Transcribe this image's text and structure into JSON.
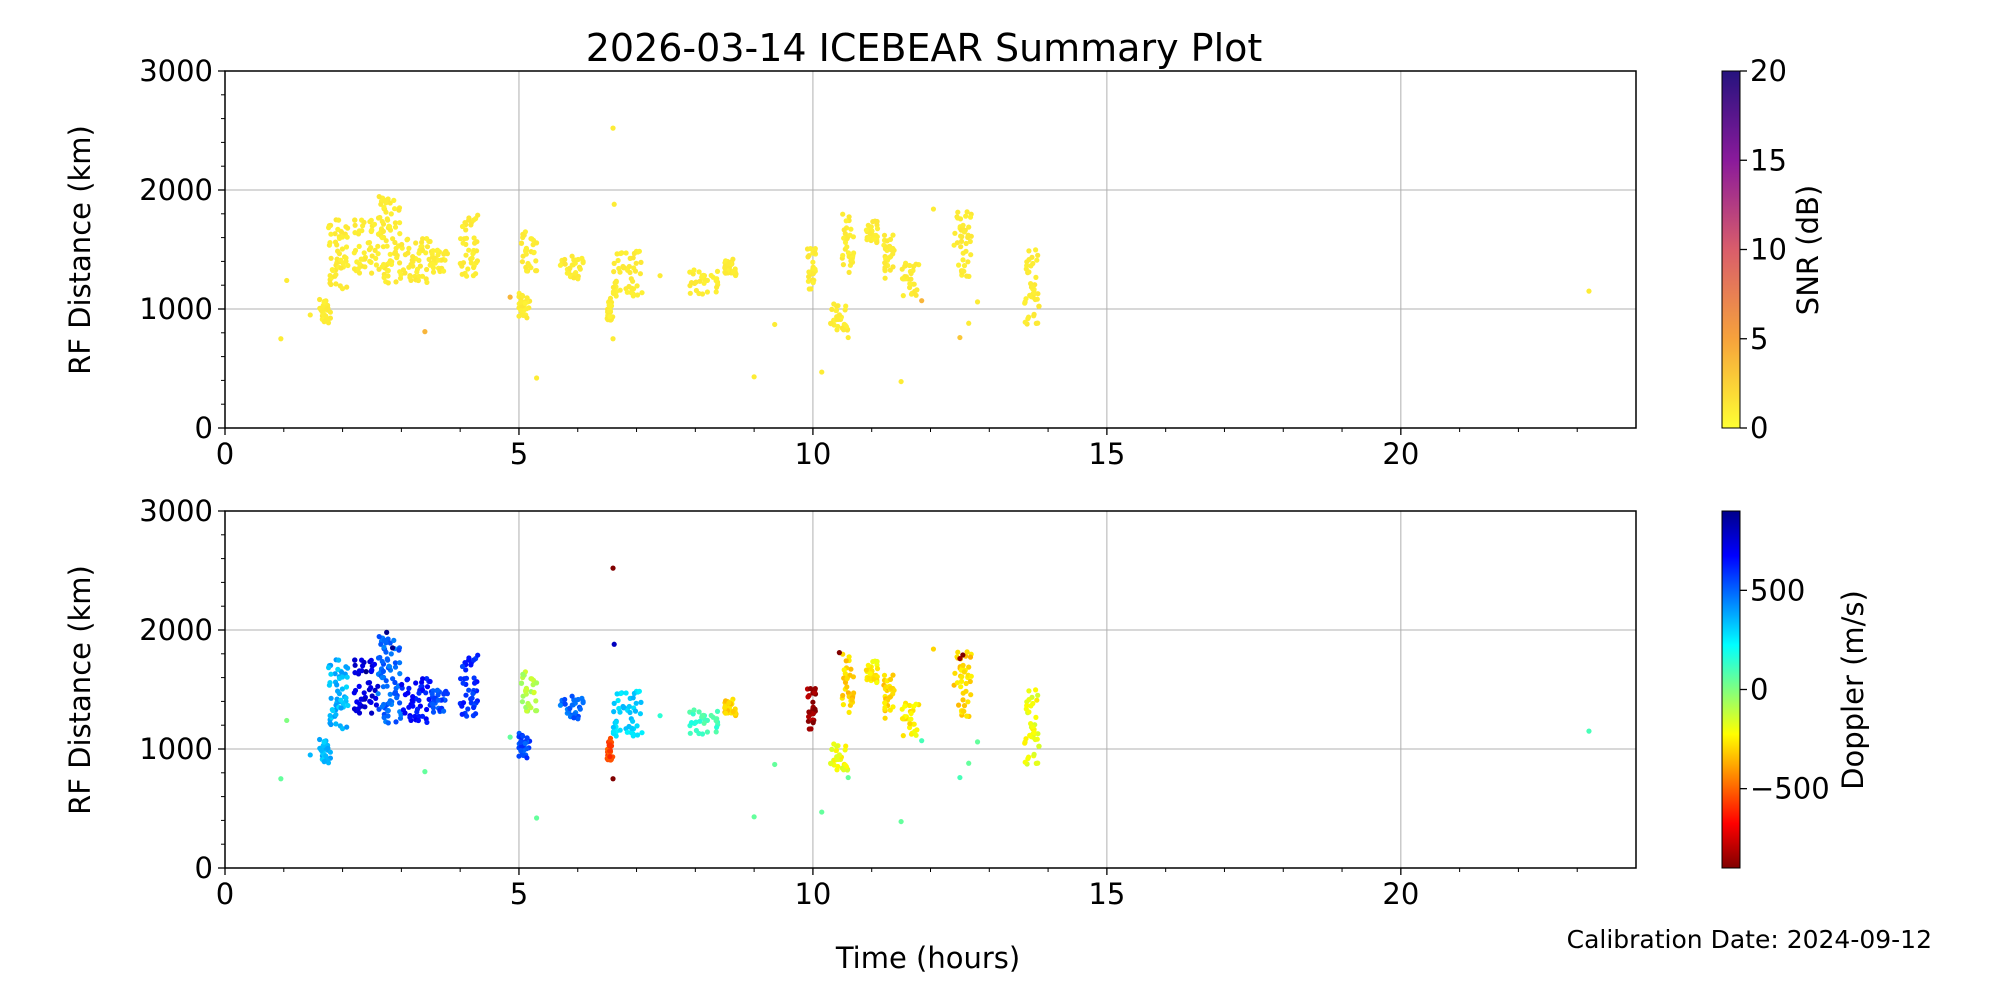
{
  "figure": {
    "title": "2026-03-14 ICEBEAR Summary Plot",
    "xlabel": "Time (hours)",
    "calibration_note": "Calibration Date: 2024-09-12"
  },
  "colors": {
    "snr_cmap": [
      "#ffff33",
      "#f6a23c",
      "#d95d6b",
      "#8a1a9b",
      "#26137e"
    ],
    "doppler_cmap": [
      "#800000",
      "#ff0000",
      "#ff8000",
      "#ffff00",
      "#80ff80",
      "#00ffff",
      "#0080ff",
      "#0000ff",
      "#00008b"
    ],
    "grid": "#b0b0b0"
  },
  "chart_data": [
    {
      "type": "scatter",
      "name": "snr-panel",
      "xlim": [
        0,
        24
      ],
      "ylim": [
        0,
        3000
      ],
      "ylabel": "RF Distance (km)",
      "xticks": [
        0,
        5,
        10,
        15,
        20
      ],
      "yticks": [
        0,
        1000,
        2000,
        3000
      ],
      "grid": true,
      "colorbar": {
        "label": "SNR (dB)",
        "range": [
          0,
          20
        ],
        "ticks": [
          0,
          5,
          10,
          15,
          20
        ]
      },
      "clusters": [
        {
          "x": [
            1.6,
            1.8
          ],
          "y": [
            880,
            1100
          ],
          "c": 1
        },
        {
          "x": [
            1.75,
            2.1
          ],
          "y": [
            1150,
            1750
          ],
          "c": 1
        },
        {
          "x": [
            2.2,
            2.6
          ],
          "y": [
            1300,
            1750
          ],
          "c": 1
        },
        {
          "x": [
            2.6,
            3.0
          ],
          "y": [
            1200,
            1950
          ],
          "c": 1
        },
        {
          "x": [
            3.0,
            3.5
          ],
          "y": [
            1220,
            1600
          ],
          "c": 1
        },
        {
          "x": [
            3.5,
            3.8
          ],
          "y": [
            1300,
            1500
          ],
          "c": 1
        },
        {
          "x": [
            4.0,
            4.3
          ],
          "y": [
            1250,
            1800
          ],
          "c": 1
        },
        {
          "x": [
            5.0,
            5.2
          ],
          "y": [
            920,
            1150
          ],
          "c": 1
        },
        {
          "x": [
            5.0,
            5.3
          ],
          "y": [
            1300,
            1650
          ],
          "c": 1
        },
        {
          "x": [
            5.7,
            6.1
          ],
          "y": [
            1250,
            1450
          ],
          "c": 1
        },
        {
          "x": [
            6.5,
            6.6
          ],
          "y": [
            900,
            1100
          ],
          "c": 1
        },
        {
          "x": [
            6.6,
            7.1
          ],
          "y": [
            1100,
            1500
          ],
          "c": 1
        },
        {
          "x": [
            7.9,
            8.4
          ],
          "y": [
            1120,
            1330
          ],
          "c": 1
        },
        {
          "x": [
            8.5,
            8.7
          ],
          "y": [
            1280,
            1420
          ],
          "c": 1
        },
        {
          "x": [
            9.9,
            10.05
          ],
          "y": [
            1150,
            1550
          ],
          "c": 1
        },
        {
          "x": [
            10.3,
            10.6
          ],
          "y": [
            820,
            1050
          ],
          "c": 1
        },
        {
          "x": [
            10.5,
            10.7
          ],
          "y": [
            1300,
            1800
          ],
          "c": 1
        },
        {
          "x": [
            10.9,
            11.1
          ],
          "y": [
            1550,
            1750
          ],
          "c": 1
        },
        {
          "x": [
            11.2,
            11.4
          ],
          "y": [
            1250,
            1650
          ],
          "c": 1
        },
        {
          "x": [
            11.5,
            11.8
          ],
          "y": [
            1100,
            1400
          ],
          "c": 1
        },
        {
          "x": [
            12.4,
            12.7
          ],
          "y": [
            1250,
            1820
          ],
          "c": 1
        },
        {
          "x": [
            13.6,
            13.85
          ],
          "y": [
            830,
            1500
          ],
          "c": 1
        }
      ],
      "points": [
        {
          "x": 0.95,
          "y": 750,
          "c": 1
        },
        {
          "x": 1.05,
          "y": 1240,
          "c": 1
        },
        {
          "x": 1.45,
          "y": 950,
          "c": 1
        },
        {
          "x": 3.4,
          "y": 810,
          "c": 4
        },
        {
          "x": 4.85,
          "y": 1100,
          "c": 4
        },
        {
          "x": 5.3,
          "y": 420,
          "c": 1
        },
        {
          "x": 6.6,
          "y": 2520,
          "c": 1
        },
        {
          "x": 6.62,
          "y": 1880,
          "c": 1
        },
        {
          "x": 6.6,
          "y": 750,
          "c": 1
        },
        {
          "x": 7.4,
          "y": 1280,
          "c": 1
        },
        {
          "x": 9.0,
          "y": 430,
          "c": 1
        },
        {
          "x": 9.35,
          "y": 870,
          "c": 1
        },
        {
          "x": 10.15,
          "y": 470,
          "c": 1
        },
        {
          "x": 10.6,
          "y": 760,
          "c": 1
        },
        {
          "x": 11.5,
          "y": 390,
          "c": 1
        },
        {
          "x": 11.85,
          "y": 1070,
          "c": 4
        },
        {
          "x": 12.05,
          "y": 1840,
          "c": 1
        },
        {
          "x": 12.5,
          "y": 760,
          "c": 3
        },
        {
          "x": 12.65,
          "y": 880,
          "c": 1
        },
        {
          "x": 12.8,
          "y": 1060,
          "c": 1
        },
        {
          "x": 23.2,
          "y": 1150,
          "c": 1
        }
      ]
    },
    {
      "type": "scatter",
      "name": "doppler-panel",
      "xlim": [
        0,
        24
      ],
      "ylim": [
        0,
        3000
      ],
      "ylabel": "RF Distance (km)",
      "xticks": [
        0,
        5,
        10,
        15,
        20
      ],
      "yticks": [
        0,
        1000,
        2000,
        3000
      ],
      "grid": true,
      "colorbar": {
        "label": "Doppler (m/s)",
        "range": [
          -900,
          900
        ],
        "ticks": [
          500,
          0,
          -500
        ],
        "tick_labels": [
          "500",
          "0",
          "−500"
        ]
      },
      "clusters": [
        {
          "x": [
            1.6,
            1.8
          ],
          "y": [
            880,
            1100
          ],
          "c": 350
        },
        {
          "x": [
            1.75,
            2.1
          ],
          "y": [
            1150,
            1750
          ],
          "c": 350
        },
        {
          "x": [
            2.2,
            2.6
          ],
          "y": [
            1300,
            1750
          ],
          "c": 750
        },
        {
          "x": [
            2.6,
            3.0
          ],
          "y": [
            1200,
            1950
          ],
          "c": 500
        },
        {
          "x": [
            3.0,
            3.5
          ],
          "y": [
            1220,
            1600
          ],
          "c": 650
        },
        {
          "x": [
            3.5,
            3.8
          ],
          "y": [
            1300,
            1500
          ],
          "c": 550
        },
        {
          "x": [
            4.0,
            4.3
          ],
          "y": [
            1250,
            1800
          ],
          "c": 600
        },
        {
          "x": [
            5.0,
            5.2
          ],
          "y": [
            920,
            1150
          ],
          "c": 550
        },
        {
          "x": [
            5.0,
            5.3
          ],
          "y": [
            1300,
            1650
          ],
          "c": -100
        },
        {
          "x": [
            5.7,
            6.1
          ],
          "y": [
            1250,
            1450
          ],
          "c": 500
        },
        {
          "x": [
            6.5,
            6.6
          ],
          "y": [
            900,
            1100
          ],
          "c": -550
        },
        {
          "x": [
            6.6,
            7.1
          ],
          "y": [
            1100,
            1500
          ],
          "c": 300
        },
        {
          "x": [
            7.9,
            8.4
          ],
          "y": [
            1120,
            1330
          ],
          "c": 120
        },
        {
          "x": [
            8.5,
            8.7
          ],
          "y": [
            1280,
            1420
          ],
          "c": -300
        },
        {
          "x": [
            9.9,
            10.05
          ],
          "y": [
            1150,
            1550
          ],
          "c": -850
        },
        {
          "x": [
            10.3,
            10.6
          ],
          "y": [
            820,
            1050
          ],
          "c": -200
        },
        {
          "x": [
            10.5,
            10.7
          ],
          "y": [
            1300,
            1800
          ],
          "c": -300
        },
        {
          "x": [
            10.9,
            11.1
          ],
          "y": [
            1550,
            1750
          ],
          "c": -250
        },
        {
          "x": [
            11.2,
            11.4
          ],
          "y": [
            1250,
            1650
          ],
          "c": -300
        },
        {
          "x": [
            11.5,
            11.8
          ],
          "y": [
            1100,
            1400
          ],
          "c": -250
        },
        {
          "x": [
            12.4,
            12.7
          ],
          "y": [
            1250,
            1820
          ],
          "c": -300
        },
        {
          "x": [
            13.6,
            13.85
          ],
          "y": [
            830,
            1500
          ],
          "c": -200
        }
      ],
      "points": [
        {
          "x": 0.95,
          "y": 750,
          "c": 50
        },
        {
          "x": 1.05,
          "y": 1240,
          "c": 0
        },
        {
          "x": 1.45,
          "y": 950,
          "c": 350
        },
        {
          "x": 3.4,
          "y": 810,
          "c": 50
        },
        {
          "x": 4.85,
          "y": 1100,
          "c": 50
        },
        {
          "x": 5.3,
          "y": 420,
          "c": 50
        },
        {
          "x": 6.6,
          "y": 2520,
          "c": -900
        },
        {
          "x": 6.62,
          "y": 1880,
          "c": 800
        },
        {
          "x": 6.6,
          "y": 750,
          "c": -900
        },
        {
          "x": 7.4,
          "y": 1280,
          "c": 150
        },
        {
          "x": 9.0,
          "y": 430,
          "c": 50
        },
        {
          "x": 9.35,
          "y": 870,
          "c": 50
        },
        {
          "x": 10.15,
          "y": 470,
          "c": 50
        },
        {
          "x": 10.6,
          "y": 760,
          "c": 50
        },
        {
          "x": 11.5,
          "y": 390,
          "c": 50
        },
        {
          "x": 11.85,
          "y": 1070,
          "c": 100
        },
        {
          "x": 12.05,
          "y": 1840,
          "c": -300
        },
        {
          "x": 12.5,
          "y": 760,
          "c": 100
        },
        {
          "x": 12.65,
          "y": 880,
          "c": 50
        },
        {
          "x": 12.8,
          "y": 1060,
          "c": 50
        },
        {
          "x": 23.2,
          "y": 1150,
          "c": 100
        },
        {
          "x": 10.45,
          "y": 1810,
          "c": -900
        },
        {
          "x": 12.55,
          "y": 1790,
          "c": -900
        },
        {
          "x": 12.5,
          "y": 1760,
          "c": -850
        },
        {
          "x": 2.75,
          "y": 1980,
          "c": 900
        },
        {
          "x": 2.85,
          "y": 1850,
          "c": 900
        },
        {
          "x": 2.4,
          "y": 1650,
          "c": 900
        }
      ]
    }
  ]
}
